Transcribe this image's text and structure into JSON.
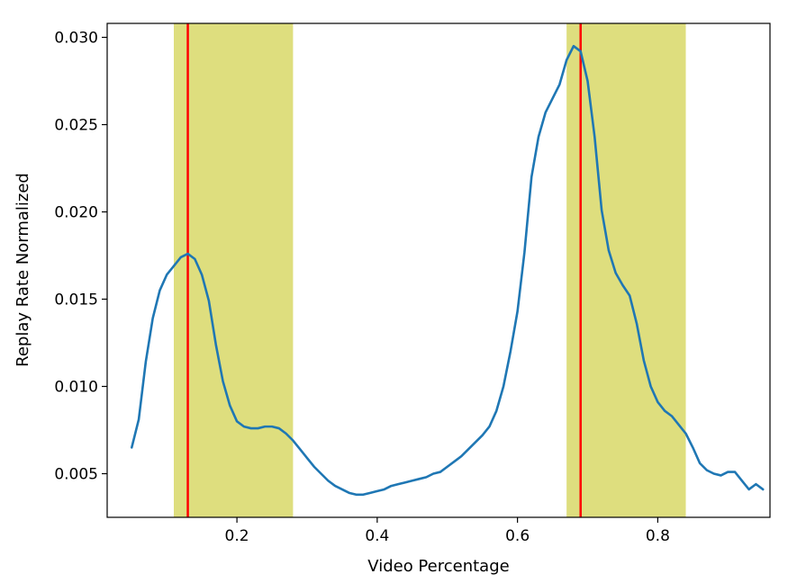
{
  "chart_data": {
    "type": "line",
    "title": "",
    "xlabel": "Video Percentage",
    "ylabel": "Replay Rate Normalized",
    "xlim": [
      0.015,
      0.96
    ],
    "ylim": [
      0.0025,
      0.0308
    ],
    "xticks": [
      0.2,
      0.4,
      0.6,
      0.8
    ],
    "xtick_labels": [
      "0.2",
      "0.4",
      "0.6",
      "0.8"
    ],
    "yticks": [
      0.005,
      0.01,
      0.015,
      0.02,
      0.025,
      0.03
    ],
    "ytick_labels": [
      "0.005",
      "0.010",
      "0.015",
      "0.020",
      "0.025",
      "0.030"
    ],
    "grid": false,
    "legend": "none",
    "colors": {
      "line": "#1f77b4",
      "band": "#dede7e",
      "peak": "#ff0000"
    },
    "shaded_regions": [
      {
        "x0": 0.11,
        "x1": 0.28
      },
      {
        "x0": 0.67,
        "x1": 0.84
      }
    ],
    "vertical_lines": [
      0.13,
      0.69
    ],
    "series": [
      {
        "x": [
          0.05,
          0.06,
          0.07,
          0.08,
          0.09,
          0.1,
          0.11,
          0.12,
          0.13,
          0.14,
          0.15,
          0.16,
          0.17,
          0.18,
          0.19,
          0.2,
          0.21,
          0.22,
          0.23,
          0.24,
          0.25,
          0.26,
          0.27,
          0.28,
          0.29,
          0.3,
          0.31,
          0.32,
          0.33,
          0.34,
          0.35,
          0.36,
          0.37,
          0.38,
          0.39,
          0.4,
          0.41,
          0.42,
          0.43,
          0.44,
          0.45,
          0.46,
          0.47,
          0.48,
          0.49,
          0.5,
          0.51,
          0.52,
          0.53,
          0.54,
          0.55,
          0.56,
          0.57,
          0.58,
          0.59,
          0.6,
          0.61,
          0.62,
          0.63,
          0.64,
          0.65,
          0.66,
          0.67,
          0.68,
          0.69,
          0.7,
          0.71,
          0.72,
          0.73,
          0.74,
          0.75,
          0.76,
          0.77,
          0.78,
          0.79,
          0.8,
          0.81,
          0.82,
          0.83,
          0.84,
          0.85,
          0.86,
          0.87,
          0.88,
          0.89,
          0.9,
          0.91,
          0.92,
          0.93,
          0.94,
          0.95
        ],
        "y": [
          0.0065,
          0.0081,
          0.0114,
          0.0139,
          0.0155,
          0.0164,
          0.0169,
          0.0174,
          0.0176,
          0.0173,
          0.0164,
          0.0149,
          0.0124,
          0.0103,
          0.0089,
          0.008,
          0.0077,
          0.0076,
          0.0076,
          0.0077,
          0.0077,
          0.0076,
          0.0073,
          0.0069,
          0.0064,
          0.0059,
          0.0054,
          0.005,
          0.0046,
          0.0043,
          0.0041,
          0.0039,
          0.0038,
          0.0038,
          0.0039,
          0.004,
          0.0041,
          0.0043,
          0.0044,
          0.0045,
          0.0046,
          0.0047,
          0.0048,
          0.005,
          0.0051,
          0.0054,
          0.0057,
          0.006,
          0.0064,
          0.0068,
          0.0072,
          0.0077,
          0.0086,
          0.01,
          0.012,
          0.0143,
          0.0177,
          0.022,
          0.0243,
          0.0257,
          0.0265,
          0.0273,
          0.0287,
          0.0295,
          0.0292,
          0.0275,
          0.0243,
          0.0201,
          0.0178,
          0.0165,
          0.0158,
          0.0152,
          0.0136,
          0.0115,
          0.01,
          0.0091,
          0.0086,
          0.0083,
          0.0078,
          0.0073,
          0.0065,
          0.0056,
          0.0052,
          0.005,
          0.0049,
          0.0051,
          0.0051,
          0.0046,
          0.0041,
          0.0044,
          0.0041
        ]
      }
    ]
  }
}
